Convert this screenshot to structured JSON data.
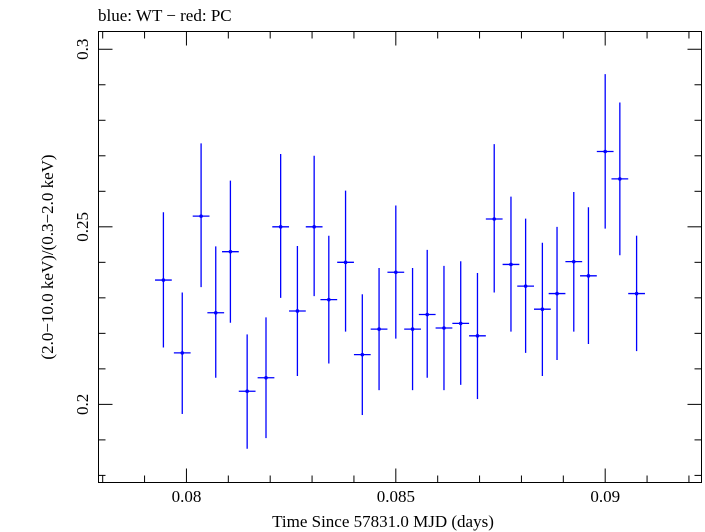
{
  "title": "blue: WT − red: PC",
  "chart_data": {
    "type": "scatter",
    "title": "blue: WT − red: PC",
    "xlabel": "Time Since 57831.0 MJD (days)",
    "ylabel": "(2.0−10.0 keV)/(0.3−2.0 keV)",
    "xlim": [
      0.0779,
      0.0923
    ],
    "ylim": [
      0.178,
      0.305
    ],
    "xticks": [
      0.08,
      0.085,
      0.09
    ],
    "xtick_labels": [
      "0.08",
      "0.085",
      "0.09"
    ],
    "yticks": [
      0.2,
      0.25,
      0.3
    ],
    "ytick_labels": [
      "0.2",
      "0.25",
      "0.3"
    ],
    "grid": false,
    "series": [
      {
        "name": "WT",
        "color": "#0000ff",
        "x_half_width": 0.0002,
        "points": [
          {
            "x": 0.07945,
            "y": 0.235,
            "lo": 0.216,
            "hi": 0.2541
          },
          {
            "x": 0.0799,
            "y": 0.2145,
            "lo": 0.1973,
            "hi": 0.2315
          },
          {
            "x": 0.08035,
            "y": 0.253,
            "lo": 0.233,
            "hi": 0.2735
          },
          {
            "x": 0.0807,
            "y": 0.2258,
            "lo": 0.2075,
            "hi": 0.2445
          },
          {
            "x": 0.08105,
            "y": 0.243,
            "lo": 0.223,
            "hi": 0.263
          },
          {
            "x": 0.08145,
            "y": 0.2037,
            "lo": 0.1875,
            "hi": 0.2197
          },
          {
            "x": 0.0819,
            "y": 0.2075,
            "lo": 0.1905,
            "hi": 0.2245
          },
          {
            "x": 0.08225,
            "y": 0.25,
            "lo": 0.23,
            "hi": 0.2705
          },
          {
            "x": 0.08265,
            "y": 0.2263,
            "lo": 0.208,
            "hi": 0.2446
          },
          {
            "x": 0.08305,
            "y": 0.25,
            "lo": 0.2305,
            "hi": 0.27
          },
          {
            "x": 0.0834,
            "y": 0.2295,
            "lo": 0.2115,
            "hi": 0.2475
          },
          {
            "x": 0.0838,
            "y": 0.24,
            "lo": 0.2205,
            "hi": 0.2602
          },
          {
            "x": 0.0842,
            "y": 0.214,
            "lo": 0.197,
            "hi": 0.231
          },
          {
            "x": 0.0846,
            "y": 0.2212,
            "lo": 0.204,
            "hi": 0.2384
          },
          {
            "x": 0.085,
            "y": 0.2372,
            "lo": 0.2185,
            "hi": 0.256
          },
          {
            "x": 0.0854,
            "y": 0.2212,
            "lo": 0.204,
            "hi": 0.2384
          },
          {
            "x": 0.08575,
            "y": 0.2253,
            "lo": 0.2075,
            "hi": 0.2435
          },
          {
            "x": 0.08615,
            "y": 0.2215,
            "lo": 0.204,
            "hi": 0.239
          },
          {
            "x": 0.08655,
            "y": 0.2228,
            "lo": 0.2055,
            "hi": 0.2403
          },
          {
            "x": 0.08695,
            "y": 0.2193,
            "lo": 0.2015,
            "hi": 0.237
          },
          {
            "x": 0.08735,
            "y": 0.2522,
            "lo": 0.2315,
            "hi": 0.2733
          },
          {
            "x": 0.08775,
            "y": 0.2394,
            "lo": 0.2205,
            "hi": 0.2585
          },
          {
            "x": 0.0881,
            "y": 0.2333,
            "lo": 0.2145,
            "hi": 0.2523
          },
          {
            "x": 0.0885,
            "y": 0.2268,
            "lo": 0.208,
            "hi": 0.2455
          },
          {
            "x": 0.08885,
            "y": 0.2312,
            "lo": 0.2125,
            "hi": 0.25
          },
          {
            "x": 0.08925,
            "y": 0.2402,
            "lo": 0.2205,
            "hi": 0.2598
          },
          {
            "x": 0.0896,
            "y": 0.2362,
            "lo": 0.217,
            "hi": 0.2555
          },
          {
            "x": 0.09,
            "y": 0.2712,
            "lo": 0.2495,
            "hi": 0.293
          },
          {
            "x": 0.09035,
            "y": 0.2635,
            "lo": 0.242,
            "hi": 0.285
          },
          {
            "x": 0.09075,
            "y": 0.2312,
            "lo": 0.215,
            "hi": 0.2475
          }
        ]
      }
    ]
  }
}
